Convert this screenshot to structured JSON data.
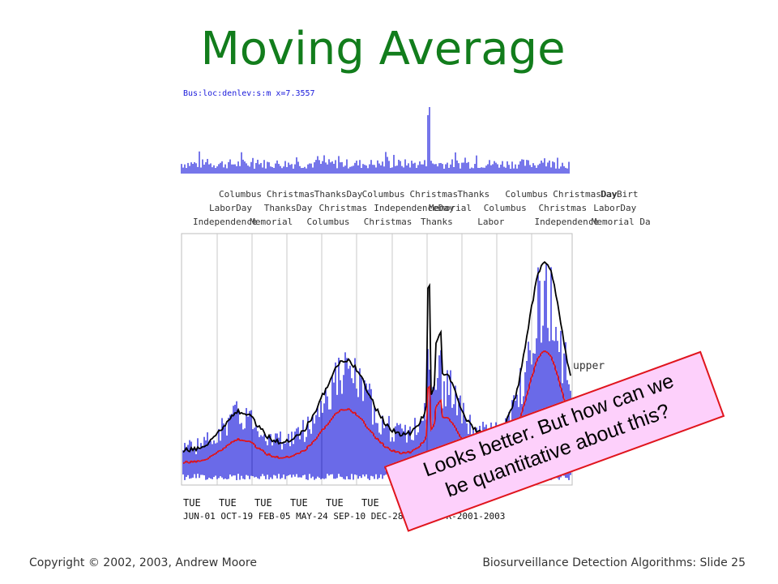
{
  "slide": {
    "title": "Moving Average",
    "mini_label": "Bus:loc:denlev:s:m x=7.3557",
    "callout": {
      "line1": "Looks better. But how can we",
      "line2": "be quantitative about this?"
    },
    "footer_left": "Copyright © 2002, 2003, Andrew  Moore",
    "footer_right": "Biosurveillance Detection Algorithms: Slide 25"
  },
  "holiday_labels": {
    "row1": [
      "Columbus",
      "Christmas",
      "ThanksDay",
      "Columbus",
      "Christmas",
      "Thanks",
      "Columbus",
      "ChristmasDay",
      "DayBirt"
    ],
    "row2": [
      "LaborDay",
      "ThanksDay",
      "Christmas",
      "IndependenceDay",
      "Memorial",
      "Columbus",
      "Christmas",
      "LaborDay"
    ],
    "row3": [
      "Independence",
      "Memorial",
      "Columbus",
      "Christmas",
      "Thanks",
      "Labor",
      "Independence",
      "Memorial Da"
    ]
  },
  "series_labels": {
    "upper": "upper"
  },
  "x_axis": {
    "day_labels": [
      "TUE",
      "TUE",
      "TUE",
      "TUE",
      "TUE",
      "TUE"
    ],
    "date_labels": "JUN-01 OCT-19 FEB-05 MAY-24 SEP-10 DEC-28   2003-APR-2001-2003"
  },
  "chart_data": {
    "type": "line",
    "series": [
      {
        "name": "upper",
        "color": "#000000"
      },
      {
        "color": "#e0151c"
      },
      {
        "color": "#1a1adb"
      }
    ],
    "grid": true,
    "legend": "right"
  },
  "colors": {
    "title": "#127d1c",
    "blue": "#1a1adb",
    "red": "#e0151c",
    "black": "#000000",
    "callout_bg": "#fdd0fb",
    "callout_border": "#e0151c"
  }
}
